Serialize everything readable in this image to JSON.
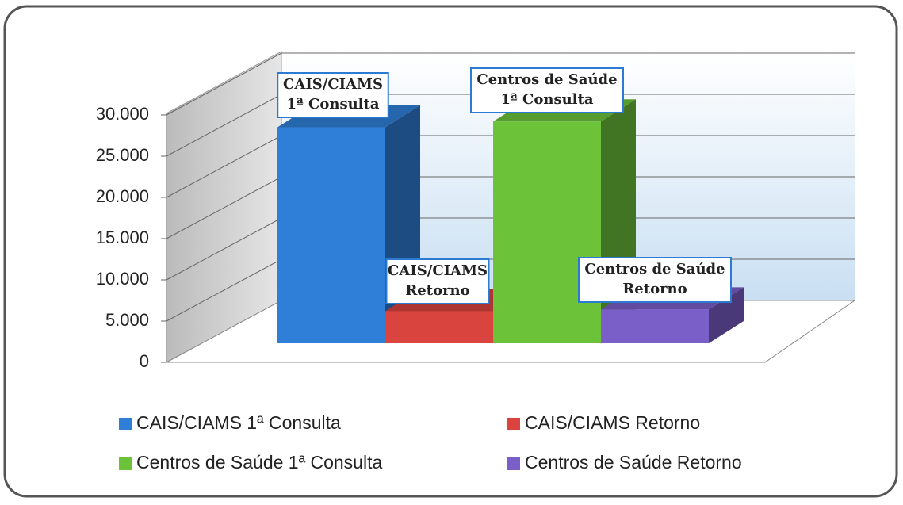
{
  "chart_data": {
    "type": "bar3d",
    "series": [
      {
        "name": "CAIS/CIAMS 1ª Consulta",
        "color": "#2f7fd8",
        "values": [
          26200
        ]
      },
      {
        "name": "CAIS/CIAMS Retorno",
        "color": "#d9443e",
        "values": [
          3900
        ]
      },
      {
        "name": "Centros de Saúde 1ª Consulta",
        "color": "#6cc33a",
        "values": [
          26900
        ]
      },
      {
        "name": "Centros de Saúde Retorno",
        "color": "#7a5fc9",
        "values": [
          4100
        ]
      }
    ],
    "callouts": [
      [
        "CAIS/CIAMS",
        "1ª Consulta"
      ],
      [
        "CAIS/CIAMS",
        "Retorno"
      ],
      [
        "Centros de Saúde",
        "1ª Consulta"
      ],
      [
        "Centros de Saúde",
        "Retorno"
      ]
    ],
    "ylim": [
      0,
      30000
    ],
    "yticks": [
      0,
      {
        "value": 5000,
        "label": "5.000"
      },
      {
        "value": 10000,
        "label": "10.000"
      },
      {
        "value": 15000,
        "label": "15.000"
      },
      {
        "value": 20000,
        "label": "20.000"
      },
      {
        "value": 25000,
        "label": "25.000"
      },
      {
        "value": 30000,
        "label": "30.000"
      }
    ],
    "grid": true
  }
}
